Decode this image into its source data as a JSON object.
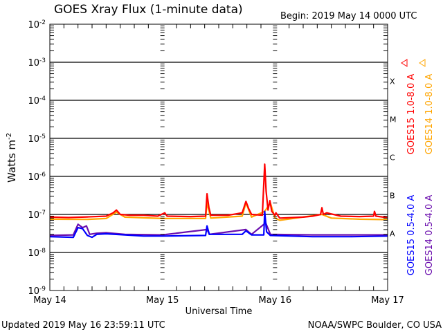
{
  "chart_data": {
    "type": "line",
    "title": "GOES Xray Flux (1-minute data)",
    "begin_label": "Begin:  2019 May 14 0000 UTC",
    "xlabel": "Universal Time",
    "ylabel": "Watts m",
    "ylabel_sup": "-2",
    "x_unit": "hours since 2019 May 14 0000 UTC",
    "xlim": [
      0,
      72
    ],
    "ylim": [
      1e-09,
      0.01
    ],
    "yscale": "log",
    "grid": "horizontal lines at each decade",
    "x_ticks": [
      {
        "value": 0,
        "label": "May 14"
      },
      {
        "value": 24,
        "label": "May 15"
      },
      {
        "value": 48,
        "label": "May 16"
      },
      {
        "value": 72,
        "label": "May 17"
      }
    ],
    "y_ticks": [
      {
        "value": 0.01,
        "base": "10",
        "exp": "-2"
      },
      {
        "value": 0.001,
        "base": "10",
        "exp": "-3"
      },
      {
        "value": 0.0001,
        "base": "10",
        "exp": "-4"
      },
      {
        "value": 1e-05,
        "base": "10",
        "exp": "-5"
      },
      {
        "value": 1e-06,
        "base": "10",
        "exp": "-6"
      },
      {
        "value": 1e-07,
        "base": "10",
        "exp": "-7"
      },
      {
        "value": 1e-08,
        "base": "10",
        "exp": "-8"
      },
      {
        "value": 1e-09,
        "base": "10",
        "exp": "-9"
      }
    ],
    "flare_classes": [
      {
        "label": "X",
        "value": 0.000316
      },
      {
        "label": "M",
        "value": 3.16e-05
      },
      {
        "label": "C",
        "value": 3.16e-06
      },
      {
        "label": "B",
        "value": 3.16e-07
      },
      {
        "label": "A",
        "value": 3.16e-08
      }
    ],
    "series": [
      {
        "name": "GOES15 1.0-8.0 A",
        "color": "#ff0000",
        "points": [
          [
            0,
            8.5e-08
          ],
          [
            4,
            8.3e-08
          ],
          [
            8,
            8.6e-08
          ],
          [
            12,
            9e-08
          ],
          [
            13.5,
            1.1e-07
          ],
          [
            14.2,
            1.3e-07
          ],
          [
            15,
            1e-07
          ],
          [
            17,
            9.5e-08
          ],
          [
            20,
            9.5e-08
          ],
          [
            23,
            9e-08
          ],
          [
            24.5,
            1.1e-07
          ],
          [
            25,
            9e-08
          ],
          [
            30,
            8.8e-08
          ],
          [
            33.2,
            9e-08
          ],
          [
            33.5,
            3.5e-07
          ],
          [
            33.9,
            1.5e-07
          ],
          [
            34.3,
            9.5e-08
          ],
          [
            38,
            9.5e-08
          ],
          [
            41,
            1.1e-07
          ],
          [
            41.8,
            2.2e-07
          ],
          [
            42.4,
            1.4e-07
          ],
          [
            43,
            1e-07
          ],
          [
            45.3,
            9.5e-08
          ],
          [
            45.8,
            2.1e-06
          ],
          [
            46.1,
            4e-07
          ],
          [
            46.5,
            1.3e-07
          ],
          [
            46.9,
            2.3e-07
          ],
          [
            47.3,
            1.2e-07
          ],
          [
            48,
            9.5e-08
          ],
          [
            48.2,
            1.1e-07
          ],
          [
            49,
            8e-08
          ],
          [
            54,
            8.5e-08
          ],
          [
            56,
            9e-08
          ],
          [
            57.7,
            1e-07
          ],
          [
            58,
            1.5e-07
          ],
          [
            58.3,
            1e-07
          ],
          [
            59,
            1.1e-07
          ],
          [
            62,
            9e-08
          ],
          [
            66,
            8.8e-08
          ],
          [
            69,
            9e-08
          ],
          [
            69.2,
            1.2e-07
          ],
          [
            69.5,
            9e-08
          ],
          [
            72,
            8.2e-08
          ]
        ]
      },
      {
        "name": "GOES14 1.0-8.0 A",
        "color": "#ffa500",
        "points": [
          [
            0,
            7.5e-08
          ],
          [
            8,
            7.4e-08
          ],
          [
            12,
            7.8e-08
          ],
          [
            14.2,
            1.15e-07
          ],
          [
            16,
            8.5e-08
          ],
          [
            24,
            7.8e-08
          ],
          [
            33.2,
            7.8e-08
          ],
          [
            33.5,
            2e-07
          ],
          [
            34.3,
            8e-08
          ],
          [
            41,
            9e-08
          ],
          [
            41.8,
            2e-07
          ],
          [
            43,
            8.5e-08
          ],
          [
            45.8,
            1.2e-07
          ],
          [
            47,
            2e-07
          ],
          [
            48,
            8e-08
          ],
          [
            49,
            7e-08
          ],
          [
            58,
            1e-07
          ],
          [
            60,
            8e-08
          ],
          [
            66,
            7.5e-08
          ],
          [
            72,
            7.3e-08
          ]
        ]
      },
      {
        "name": "GOES15 0.5-4.0 A",
        "color": "#0000ff",
        "points": [
          [
            0,
            2.6e-08
          ],
          [
            5,
            2.5e-08
          ],
          [
            6,
            4.5e-08
          ],
          [
            7,
            4.2e-08
          ],
          [
            8,
            2.8e-08
          ],
          [
            9,
            2.5e-08
          ],
          [
            10,
            3e-08
          ],
          [
            12,
            3.1e-08
          ],
          [
            16,
            2.9e-08
          ],
          [
            20,
            2.7e-08
          ],
          [
            24,
            2.7e-08
          ],
          [
            33.2,
            2.8e-08
          ],
          [
            33.5,
            5e-08
          ],
          [
            34,
            3e-08
          ],
          [
            41,
            3e-08
          ],
          [
            41.8,
            3.7e-08
          ],
          [
            43,
            2.9e-08
          ],
          [
            45.6,
            2.9e-08
          ],
          [
            45.8,
            1.2e-07
          ],
          [
            46.2,
            3.5e-08
          ],
          [
            47,
            2.8e-08
          ],
          [
            56,
            2.6e-08
          ],
          [
            64,
            2.6e-08
          ],
          [
            72,
            2.7e-08
          ]
        ]
      },
      {
        "name": "GOES14 0.5-4.0 A",
        "color": "#6a0dad",
        "points": [
          [
            0,
            2.8e-08
          ],
          [
            5,
            2.9e-08
          ],
          [
            6,
            5.5e-08
          ],
          [
            7,
            4.5e-08
          ],
          [
            7.8,
            5e-08
          ],
          [
            8.5,
            3e-08
          ],
          [
            10,
            3.2e-08
          ],
          [
            12,
            3.3e-08
          ],
          [
            16,
            3e-08
          ],
          [
            24,
            2.9e-08
          ],
          [
            33.5,
            4e-08
          ],
          [
            34,
            3e-08
          ],
          [
            41.8,
            4e-08
          ],
          [
            43,
            3e-08
          ],
          [
            46,
            6e-08
          ],
          [
            47,
            3e-08
          ],
          [
            56,
            2.9e-08
          ],
          [
            72,
            2.9e-08
          ]
        ]
      }
    ]
  },
  "footer": {
    "updated": "Updated 2019 May 16 23:59:11 UTC",
    "credit": "NOAA/SWPC Boulder, CO USA"
  }
}
